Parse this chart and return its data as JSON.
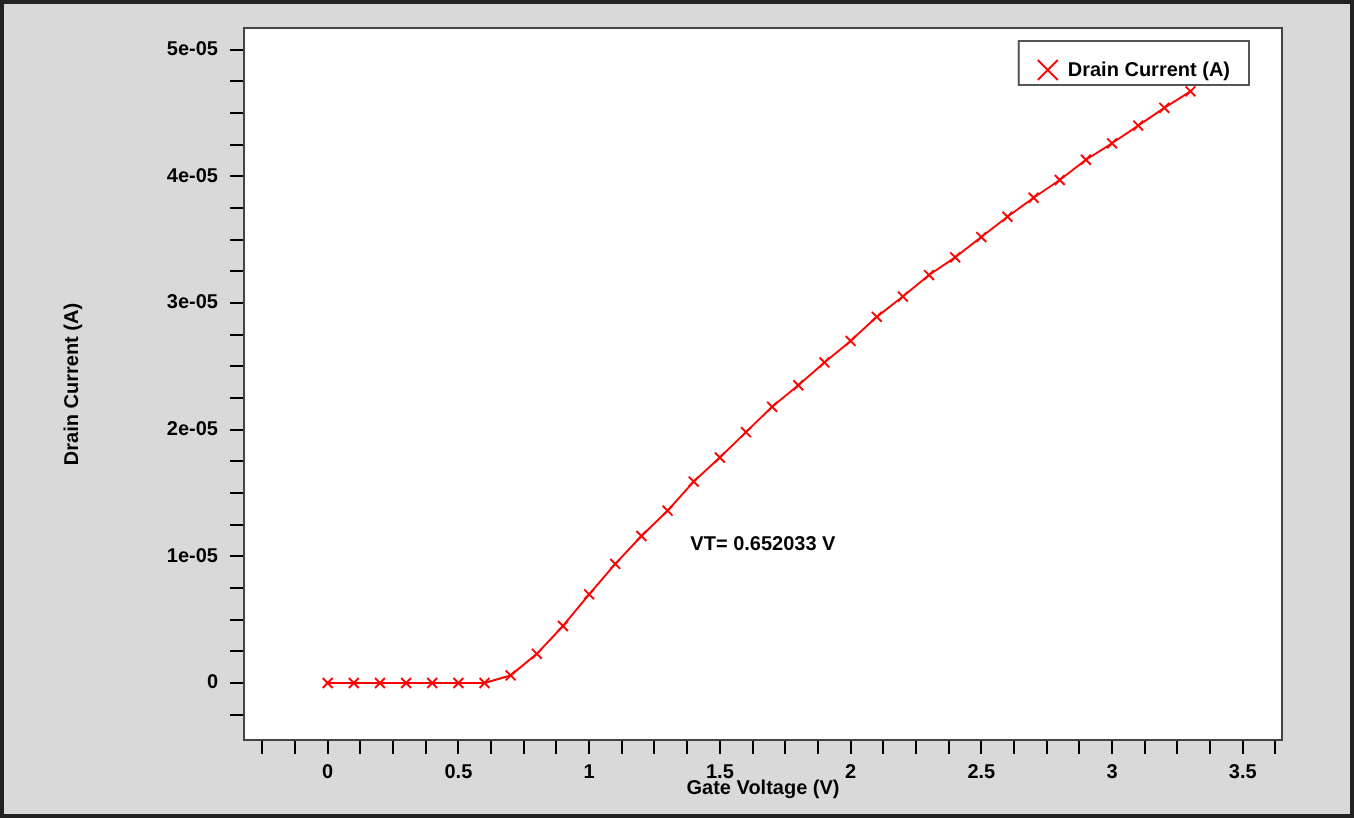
{
  "chart_data": {
    "type": "line",
    "xlabel": "Gate Voltage (V)",
    "ylabel": "Drain Current (A)",
    "x": [
      0,
      0.1,
      0.2,
      0.3,
      0.4,
      0.5,
      0.6,
      0.7,
      0.8,
      0.9,
      1.0,
      1.1,
      1.2,
      1.3,
      1.4,
      1.5,
      1.6,
      1.7,
      1.8,
      1.9,
      2.0,
      2.1,
      2.2,
      2.3,
      2.4,
      2.5,
      2.6,
      2.7,
      2.8,
      2.9,
      3.0,
      3.1,
      3.2,
      3.3
    ],
    "series": [
      {
        "name": "Drain Current (A)",
        "color": "#ff0000",
        "values": [
          0,
          0,
          0,
          0,
          0,
          0,
          0,
          6e-07,
          2.3e-06,
          4.5e-06,
          7e-06,
          9.4e-06,
          1.16e-05,
          1.36e-05,
          1.59e-05,
          1.78e-05,
          1.98e-05,
          2.18e-05,
          2.35e-05,
          2.53e-05,
          2.7e-05,
          2.89e-05,
          3.05e-05,
          3.22e-05,
          3.36e-05,
          3.52e-05,
          3.68e-05,
          3.83e-05,
          3.97e-05,
          4.13e-05,
          4.26e-05,
          4.4e-05,
          4.54e-05,
          4.67e-05
        ]
      }
    ],
    "xlim": [
      -0.32,
      3.65
    ],
    "xticks": [
      {
        "value": -0.25,
        "label": null
      },
      {
        "value": -0.125,
        "label": null
      },
      0,
      {
        "value": 0.125,
        "label": null
      },
      {
        "value": 0.25,
        "label": null
      },
      {
        "value": 0.375,
        "label": null
      },
      0.5,
      {
        "value": 0.625,
        "label": null
      },
      {
        "value": 0.75,
        "label": null
      },
      {
        "value": 0.875,
        "label": null
      },
      1,
      {
        "value": 1.125,
        "label": null
      },
      {
        "value": 1.25,
        "label": null
      },
      {
        "value": 1.375,
        "label": null
      },
      1.5,
      {
        "value": 1.625,
        "label": null
      },
      {
        "value": 1.75,
        "label": null
      },
      {
        "value": 1.875,
        "label": null
      },
      2,
      {
        "value": 2.125,
        "label": null
      },
      {
        "value": 2.25,
        "label": null
      },
      {
        "value": 2.375,
        "label": null
      },
      2.5,
      {
        "value": 2.625,
        "label": null
      },
      {
        "value": 2.75,
        "label": null
      },
      {
        "value": 2.875,
        "label": null
      },
      3,
      {
        "value": 3.125,
        "label": null
      },
      {
        "value": 3.25,
        "label": null
      },
      {
        "value": 3.375,
        "label": null
      },
      3.5,
      {
        "value": 3.625,
        "label": null
      }
    ],
    "ylim": [
      -4.5e-06,
      5.17e-05
    ],
    "yticks": [
      {
        "value": -2.5e-06,
        "label": null
      },
      0,
      {
        "value": 2.5e-06,
        "label": null
      },
      {
        "value": 5e-06,
        "label": null
      },
      {
        "value": 7.5e-06,
        "label": null
      },
      {
        "value": 1e-05,
        "label": "1e-05"
      },
      {
        "value": 1.25e-05,
        "label": null
      },
      {
        "value": 1.5e-05,
        "label": null
      },
      {
        "value": 1.75e-05,
        "label": null
      },
      {
        "value": 2e-05,
        "label": "2e-05"
      },
      {
        "value": 2.25e-05,
        "label": null
      },
      {
        "value": 2.5e-05,
        "label": null
      },
      {
        "value": 2.75e-05,
        "label": null
      },
      {
        "value": 3e-05,
        "label": "3e-05"
      },
      {
        "value": 3.25e-05,
        "label": null
      },
      {
        "value": 3.5e-05,
        "label": null
      },
      {
        "value": 3.75e-05,
        "label": null
      },
      {
        "value": 4e-05,
        "label": "4e-05"
      },
      {
        "value": 4.25e-05,
        "label": null
      },
      {
        "value": 4.5e-05,
        "label": null
      },
      {
        "value": 4.75e-05,
        "label": null
      },
      {
        "value": 5e-05,
        "label": "5e-05"
      }
    ],
    "annotations": [
      "VT= 0.652033 V"
    ],
    "legend": "top right",
    "marker": "cross",
    "line_style": "solid",
    "grid": false
  }
}
